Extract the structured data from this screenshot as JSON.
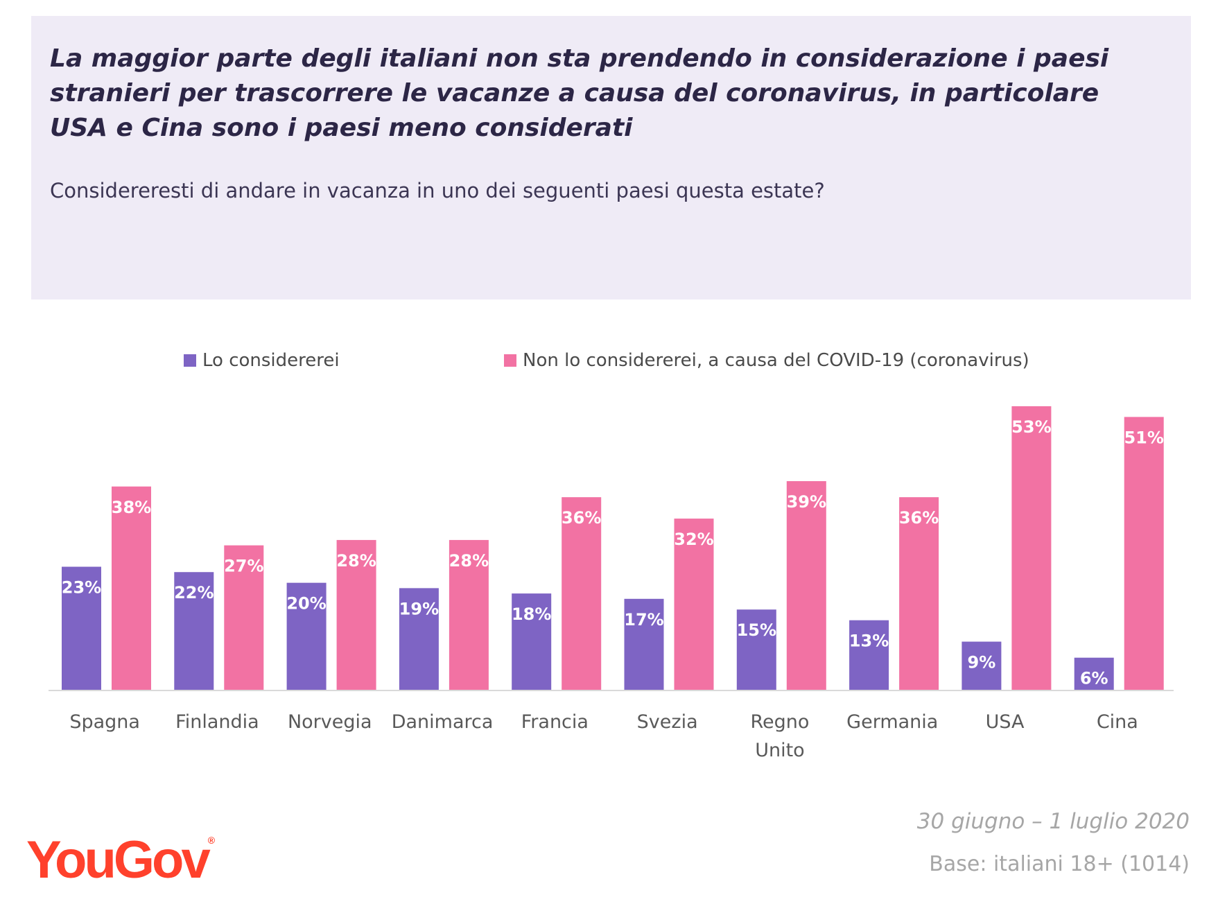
{
  "header": {
    "headline": "La maggior parte degli italiani non sta prendendo in considerazione i paesi stranieri per trascorrere le vacanze a causa del coronavirus, in particolare USA e Cina sono i paesi meno considerati",
    "question": "Considereresti di andare in vacanza in uno dei seguenti paesi questa estate?"
  },
  "footer": {
    "date": "30 giugno – 1 luglio 2020",
    "base": "Base: italiani 18+ (1014)",
    "logo": "YouGov",
    "logo_mark": "®"
  },
  "colors": {
    "consider": "#7e64c4",
    "not_consider": "#f272a3",
    "header_bg": "#efebf6",
    "logo": "#ff412c"
  },
  "chart_data": {
    "type": "bar",
    "categories": [
      "Spagna",
      "Finlandia",
      "Norvegia",
      "Danimarca",
      "Francia",
      "Svezia",
      "Regno Unito",
      "Germania",
      "USA",
      "Cina"
    ],
    "series": [
      {
        "name": "Lo considererei",
        "values": [
          23,
          22,
          20,
          19,
          18,
          17,
          15,
          13,
          9,
          6
        ],
        "labels": [
          "23%",
          "22%",
          "20%",
          "19%",
          "18%",
          "17%",
          "15%",
          "13%",
          "9%",
          "6%"
        ]
      },
      {
        "name": "Non lo considererei, a causa del COVID-19 (coronavirus)",
        "values": [
          38,
          27,
          28,
          28,
          36,
          32,
          39,
          36,
          53,
          51
        ],
        "labels": [
          "38%",
          "27%",
          "28%",
          "28%",
          "36%",
          "32%",
          "39%",
          "36%",
          "53%",
          "51%"
        ]
      }
    ],
    "value_unit": "%",
    "ylim": [
      0,
      53
    ],
    "grid": false,
    "legend_position": "top"
  }
}
